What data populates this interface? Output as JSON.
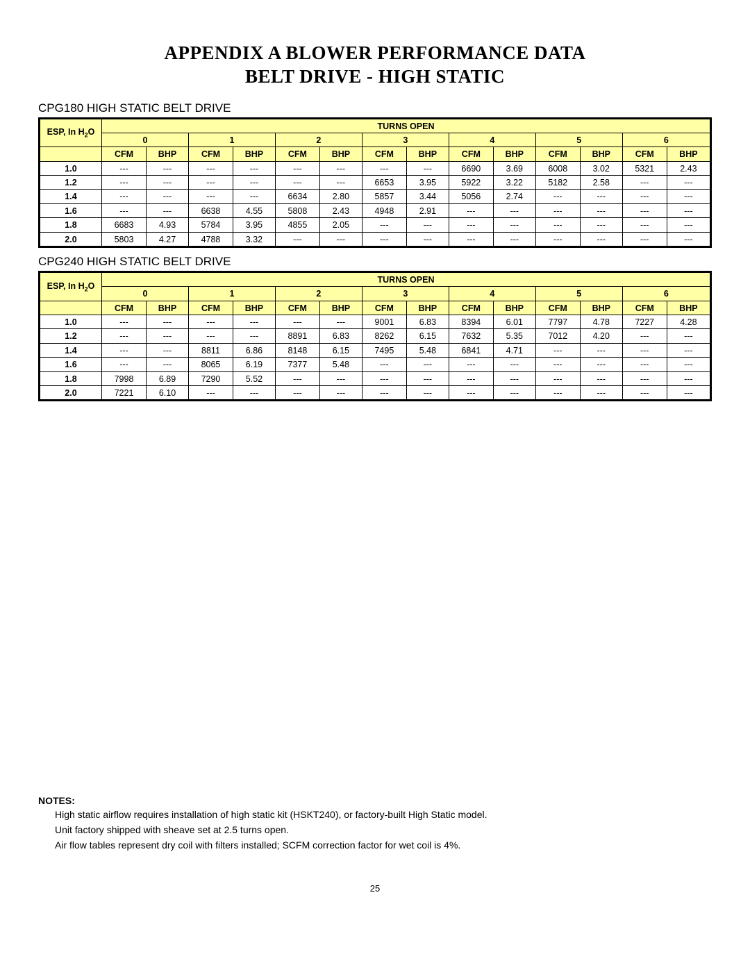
{
  "title_line1": "APPENDIX A BLOWER PERFORMANCE DATA",
  "title_line2": "BELT DRIVE - HIGH STATIC",
  "page_number": "25",
  "tables": [
    {
      "caption": "CPG180 HIGH STATIC BELT DRIVE",
      "rows": [
        {
          "esp": "1.0",
          "c": [
            "---",
            "---",
            "---",
            "---",
            "---",
            "---",
            "---",
            "---",
            "6690",
            "3.69",
            "6008",
            "3.02",
            "5321",
            "2.43"
          ]
        },
        {
          "esp": "1.2",
          "c": [
            "---",
            "---",
            "---",
            "---",
            "---",
            "---",
            "6653",
            "3.95",
            "5922",
            "3.22",
            "5182",
            "2.58",
            "---",
            "---"
          ]
        },
        {
          "esp": "1.4",
          "c": [
            "---",
            "---",
            "---",
            "---",
            "6634",
            "2.80",
            "5857",
            "3.44",
            "5056",
            "2.74",
            "---",
            "---",
            "---",
            "---"
          ]
        },
        {
          "esp": "1.6",
          "c": [
            "---",
            "---",
            "6638",
            "4.55",
            "5808",
            "2.43",
            "4948",
            "2.91",
            "---",
            "---",
            "---",
            "---",
            "---",
            "---"
          ]
        },
        {
          "esp": "1.8",
          "c": [
            "6683",
            "4.93",
            "5784",
            "3.95",
            "4855",
            "2.05",
            "---",
            "---",
            "---",
            "---",
            "---",
            "---",
            "---",
            "---"
          ]
        },
        {
          "esp": "2.0",
          "c": [
            "5803",
            "4.27",
            "4788",
            "3.32",
            "---",
            "---",
            "---",
            "---",
            "---",
            "---",
            "---",
            "---",
            "---",
            "---"
          ]
        }
      ]
    },
    {
      "caption": "CPG240 HIGH STATIC BELT DRIVE",
      "rows": [
        {
          "esp": "1.0",
          "c": [
            "---",
            "---",
            "---",
            "---",
            "---",
            "---",
            "9001",
            "6.83",
            "8394",
            "6.01",
            "7797",
            "4.78",
            "7227",
            "4.28"
          ]
        },
        {
          "esp": "1.2",
          "c": [
            "---",
            "---",
            "---",
            "---",
            "8891",
            "6.83",
            "8262",
            "6.15",
            "7632",
            "5.35",
            "7012",
            "4.20",
            "---",
            "---"
          ]
        },
        {
          "esp": "1.4",
          "c": [
            "---",
            "---",
            "8811",
            "6.86",
            "8148",
            "6.15",
            "7495",
            "5.48",
            "6841",
            "4.71",
            "---",
            "---",
            "---",
            "---"
          ]
        },
        {
          "esp": "1.6",
          "c": [
            "---",
            "---",
            "8065",
            "6.19",
            "7377",
            "5.48",
            "---",
            "---",
            "---",
            "---",
            "---",
            "---",
            "---",
            "---"
          ]
        },
        {
          "esp": "1.8",
          "c": [
            "7998",
            "6.89",
            "7290",
            "5.52",
            "---",
            "---",
            "---",
            "---",
            "---",
            "---",
            "---",
            "---",
            "---",
            "---"
          ]
        },
        {
          "esp": "2.0",
          "c": [
            "7221",
            "6.10",
            "---",
            "---",
            "---",
            "---",
            "---",
            "---",
            "---",
            "---",
            "---",
            "---",
            "---",
            "---"
          ]
        }
      ]
    }
  ],
  "header": {
    "turns_open": "TURNS OPEN",
    "esp_label_html": "ESP, In H<sub>2</sub>O",
    "turn_numbers": [
      "0",
      "1",
      "2",
      "3",
      "4",
      "5",
      "6"
    ],
    "cfm": "CFM",
    "bhp": "BHP"
  },
  "colors": {
    "header_bg": "#ffffa6",
    "border": "#000000",
    "text": "#000000",
    "background": "#ffffff"
  },
  "notes": {
    "heading": "NOTES:",
    "lines": [
      "High static airflow requires installation of high static kit (HSKT240), or factory-built High Static model.",
      "Unit factory shipped with sheave set at 2.5 turns open.",
      "Air flow tables represent dry coil with filters installed; SCFM correction factor for wet coil is 4%."
    ]
  }
}
